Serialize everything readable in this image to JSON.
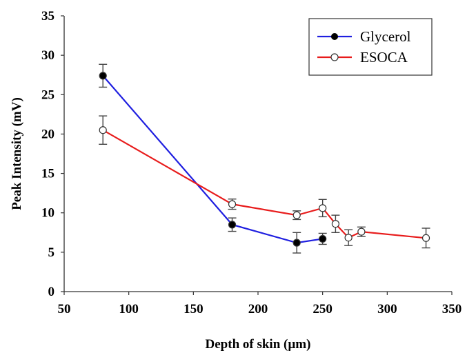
{
  "chart_data": {
    "type": "line",
    "title": "",
    "xlabel": "Depth of skin (µm)",
    "ylabel": "Peak Intensity (mV)",
    "xlim": [
      50,
      350
    ],
    "ylim": [
      0,
      35
    ],
    "xticks": [
      50,
      100,
      150,
      200,
      250,
      300,
      350
    ],
    "yticks": [
      0,
      5,
      10,
      15,
      20,
      25,
      30,
      35
    ],
    "grid": false,
    "legend_position": "top-right",
    "series": [
      {
        "name": "Glycerol",
        "color": "#1f1fe0",
        "marker": "filled-circle",
        "x": [
          80,
          180,
          230,
          250
        ],
        "y": [
          27.4,
          8.5,
          6.2,
          6.7
        ],
        "err": [
          1.45,
          0.85,
          1.3,
          0.7
        ]
      },
      {
        "name": "ESOCA",
        "color": "#e81c1c",
        "marker": "open-circle",
        "x": [
          80,
          180,
          230,
          250,
          260,
          270,
          280,
          330
        ],
        "y": [
          20.5,
          11.1,
          9.7,
          10.6,
          8.6,
          6.85,
          7.6,
          6.8
        ],
        "err": [
          1.8,
          0.65,
          0.55,
          1.1,
          1.1,
          1.0,
          0.6,
          1.25
        ]
      }
    ]
  }
}
